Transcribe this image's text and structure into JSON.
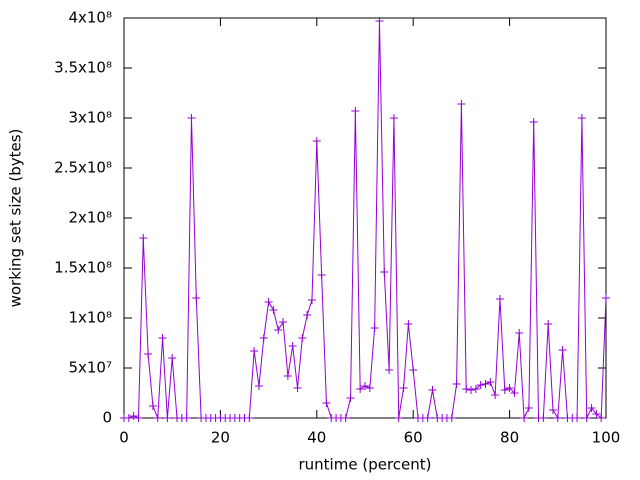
{
  "chart_data": {
    "type": "line",
    "xlabel": "runtime (percent)",
    "ylabel": "working set size (bytes)",
    "x": [
      0,
      1,
      2,
      3,
      4,
      5,
      6,
      7,
      8,
      9,
      10,
      11,
      12,
      13,
      14,
      15,
      16,
      17,
      18,
      19,
      20,
      21,
      22,
      23,
      24,
      25,
      26,
      27,
      28,
      29,
      30,
      31,
      32,
      33,
      34,
      35,
      36,
      37,
      38,
      39,
      40,
      41,
      42,
      43,
      44,
      45,
      46,
      47,
      48,
      49,
      50,
      51,
      52,
      53,
      54,
      55,
      56,
      57,
      58,
      59,
      60,
      61,
      62,
      63,
      64,
      65,
      66,
      67,
      68,
      69,
      70,
      71,
      72,
      73,
      74,
      75,
      76,
      77,
      78,
      79,
      80,
      81,
      82,
      83,
      84,
      85,
      86,
      87,
      88,
      89,
      90,
      91,
      92,
      93,
      94,
      95,
      96,
      97,
      98,
      99,
      100
    ],
    "series": [
      {
        "color": "#9400d3",
        "values": [
          0,
          0,
          2000000,
          0,
          180000000,
          64000000,
          12000000,
          0,
          80000000,
          0,
          60000000,
          0,
          0,
          0,
          300000000,
          120000000,
          0,
          0,
          0,
          0,
          0,
          0,
          0,
          0,
          0,
          0,
          0,
          67000000,
          32000000,
          80000000,
          116000000,
          108000000,
          88000000,
          96000000,
          42000000,
          72000000,
          30000000,
          80000000,
          103000000,
          118000000,
          277000000,
          143000000,
          15000000,
          0,
          0,
          0,
          0,
          20000000,
          307000000,
          29000000,
          32000000,
          30000000,
          90000000,
          397000000,
          146000000,
          48000000,
          300000000,
          0,
          30000000,
          94000000,
          48000000,
          0,
          0,
          0,
          28000000,
          0,
          0,
          0,
          0,
          34000000,
          314000000,
          29000000,
          28000000,
          29000000,
          33000000,
          34000000,
          36000000,
          23000000,
          119000000,
          28000000,
          30000000,
          25000000,
          85000000,
          0,
          10000000,
          296000000,
          0,
          0,
          94000000,
          8000000,
          0,
          68000000,
          0,
          0,
          0,
          300000000,
          0,
          10000000,
          4000000,
          0,
          120000000
        ]
      }
    ],
    "xlim": [
      0,
      100
    ],
    "xticks": [
      0,
      20,
      40,
      60,
      80,
      100
    ],
    "ylim": [
      0,
      400000000
    ],
    "yticks": [
      0,
      {
        "value": 50000000,
        "label": "5x10⁷"
      },
      {
        "value": 100000000,
        "label": "1x10⁸"
      },
      {
        "value": 150000000,
        "label": "1.5x10⁸"
      },
      {
        "value": 200000000,
        "label": "2x10⁸"
      },
      {
        "value": 250000000,
        "label": "2.5x10⁸"
      },
      {
        "value": 300000000,
        "label": "3x10⁸"
      },
      {
        "value": 350000000,
        "label": "3.5x10⁸"
      },
      {
        "value": 400000000,
        "label": "4x10⁸"
      }
    ],
    "markers": true
  }
}
